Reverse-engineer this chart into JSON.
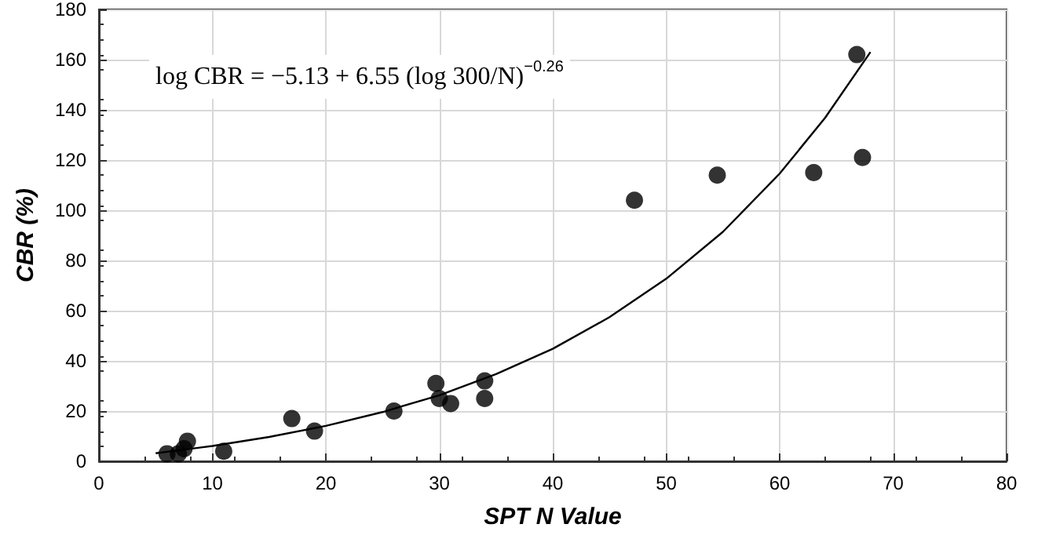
{
  "chart_data": {
    "type": "scatter",
    "xlabel": "SPT N Value",
    "ylabel": "CBR (%)",
    "xlim": [
      0,
      80
    ],
    "xticks": [
      0,
      10,
      20,
      30,
      40,
      50,
      60,
      70,
      80
    ],
    "ylim": [
      0,
      180
    ],
    "yticks": [
      0,
      20,
      40,
      60,
      80,
      100,
      120,
      140,
      160,
      180
    ],
    "grid": true,
    "annotations": [
      "log CBR = −5.13 + 6.55 (log 300/N)$^{−0.26}$"
    ],
    "series": [
      {
        "marker": "circle",
        "color": "#000000",
        "x": [
          6,
          7,
          7.5,
          7.8,
          11,
          17,
          19,
          26,
          29.7,
          30,
          31,
          34,
          34,
          47.2,
          54.5,
          63,
          66.8,
          67.3
        ],
        "values": [
          3,
          3,
          5,
          8,
          4,
          17,
          12,
          20,
          31,
          25,
          23,
          32,
          25,
          104,
          114,
          115,
          162,
          121
        ]
      },
      {
        "type": "line",
        "marker": "none",
        "line_style": "solid",
        "color": "#000000",
        "x": [
          5,
          10,
          15,
          20,
          25,
          30,
          35,
          40,
          45,
          50,
          55,
          60,
          64,
          68
        ],
        "values": [
          3.2,
          6.1,
          9.7,
          14.1,
          19.6,
          26.3,
          34.7,
          44.8,
          57.4,
          72.7,
          91.4,
          114.6,
          136.8,
          163
        ]
      }
    ]
  }
}
